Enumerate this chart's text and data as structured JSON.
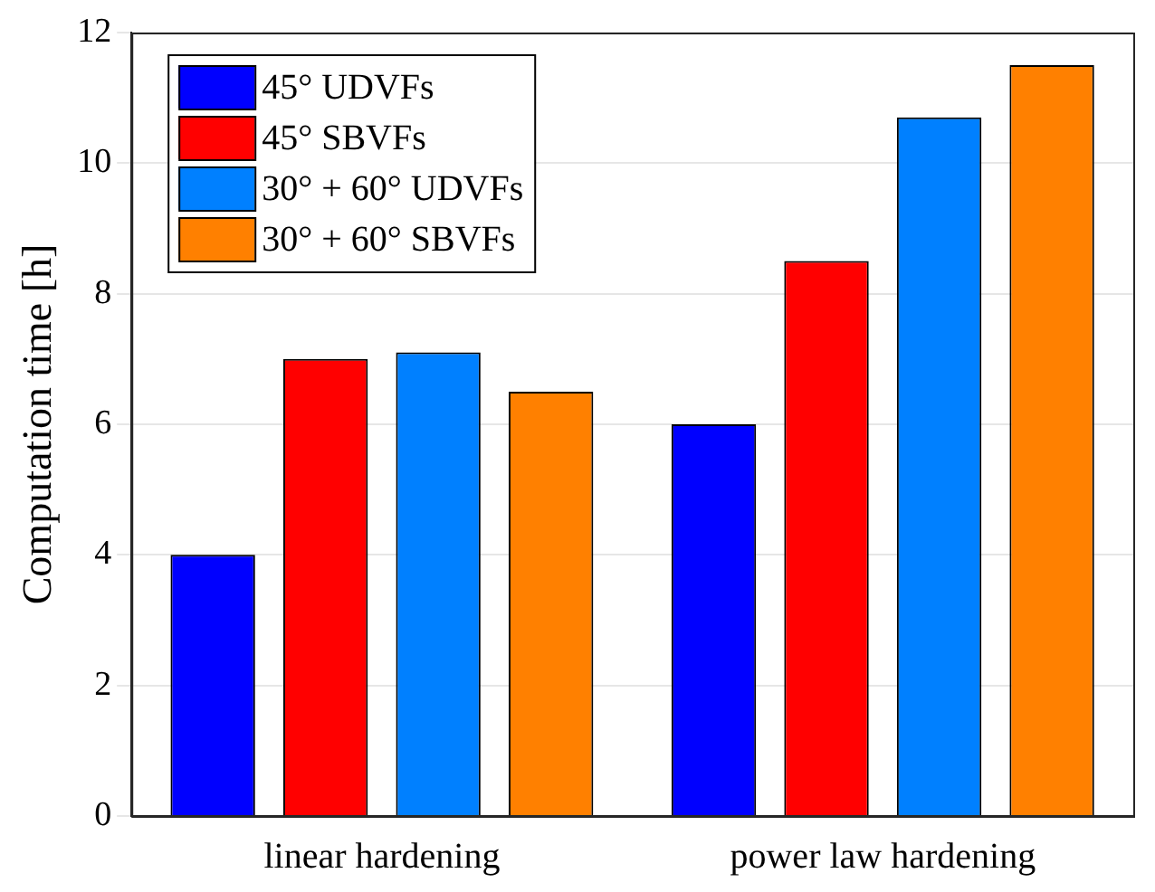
{
  "chart_data": {
    "type": "bar",
    "ylabel": "Computation time [h]",
    "categories": [
      "linear hardening",
      "power law hardening"
    ],
    "series": [
      {
        "name": "45° UDVFs",
        "color": "#0000ff",
        "values": [
          4,
          6
        ]
      },
      {
        "name": "45° SBVFs",
        "color": "#ff0000",
        "values": [
          7,
          8.5
        ]
      },
      {
        "name": "30° + 60° UDVFs",
        "color": "#0080ff",
        "values": [
          7.1,
          10.7
        ]
      },
      {
        "name": "30° + 60° SBVFs",
        "color": "#ff8000",
        "values": [
          6.5,
          11.5
        ]
      }
    ],
    "ylim": [
      0,
      12
    ],
    "yticks": [
      0,
      2,
      4,
      6,
      8,
      10,
      12
    ],
    "grid": "y",
    "legend": "top left"
  }
}
